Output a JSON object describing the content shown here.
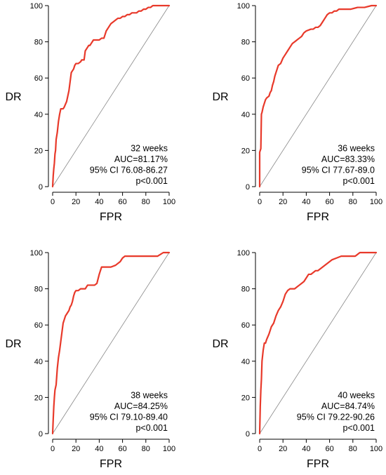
{
  "chart_data": [
    {
      "type": "line",
      "xlabel": "FPR",
      "ylabel": "DR",
      "xlim": [
        0,
        100
      ],
      "ylim": [
        0,
        100
      ],
      "xticks": [
        "0",
        "20",
        "40",
        "60",
        "80",
        "100"
      ],
      "yticks": [
        "0",
        "20",
        "40",
        "60",
        "80",
        "100"
      ],
      "grid": false,
      "annotation": [
        "32 weeks",
        "AUC=81.17%",
        "95% CI 76.08-86.27",
        "p<0.001"
      ],
      "series": [
        {
          "color": "#e8392a",
          "x": [
            0,
            0.5,
            1,
            1.5,
            2,
            2.5,
            3,
            4,
            5,
            6,
            7,
            9,
            10,
            12,
            14,
            15,
            16,
            18,
            19,
            20,
            22,
            24,
            25,
            27,
            28,
            30,
            31,
            32,
            33,
            34,
            35,
            36,
            38,
            40,
            42,
            44,
            45,
            46,
            48,
            50,
            52,
            54,
            56,
            58,
            60,
            62,
            64,
            66,
            68,
            70,
            72,
            74,
            76,
            78,
            80,
            82,
            84,
            86,
            88,
            90,
            100
          ],
          "y": [
            0,
            6,
            10,
            13,
            18,
            20,
            26,
            30,
            36,
            40,
            43,
            43,
            44,
            47,
            53,
            58,
            63,
            65,
            67,
            68,
            68,
            69,
            70,
            70,
            75,
            77,
            78,
            78,
            79,
            80,
            81,
            81,
            81,
            81,
            82,
            82,
            84,
            86,
            88,
            90,
            91,
            92,
            93,
            93,
            94,
            94,
            95,
            95,
            96,
            96,
            96,
            97,
            97,
            98,
            98,
            99,
            99,
            100,
            100,
            100,
            100
          ]
        },
        {
          "color": "#888888",
          "x": [
            0,
            100
          ],
          "y": [
            0,
            100
          ]
        }
      ]
    },
    {
      "type": "line",
      "xlabel": "FPR",
      "ylabel": "DR",
      "xlim": [
        0,
        100
      ],
      "ylim": [
        0,
        100
      ],
      "xticks": [
        "0",
        "20",
        "40",
        "60",
        "80",
        "100"
      ],
      "yticks": [
        "0",
        "20",
        "40",
        "60",
        "80",
        "100"
      ],
      "grid": false,
      "annotation": [
        "36 weeks",
        "AUC=83.33%",
        "95% CI 77.67-89.0",
        "p<0.001"
      ],
      "series": [
        {
          "color": "#e8392a",
          "x": [
            0,
            0,
            1,
            1.5,
            2,
            3,
            4,
            5,
            6,
            8,
            9,
            10,
            11,
            12,
            13,
            14,
            15,
            16,
            18,
            20,
            22,
            24,
            26,
            28,
            30,
            32,
            34,
            36,
            38,
            40,
            44,
            46,
            48,
            50,
            52,
            54,
            56,
            58,
            60,
            62,
            64,
            66,
            68,
            70,
            74,
            78,
            84,
            90,
            96,
            100
          ],
          "y": [
            0,
            19,
            21,
            40,
            41,
            44,
            46,
            48,
            49,
            50,
            52,
            53,
            56,
            58,
            61,
            63,
            65,
            67,
            68,
            71,
            73,
            75,
            77,
            79,
            80,
            81,
            82,
            83,
            85,
            86,
            87,
            87,
            88,
            88,
            89,
            91,
            93,
            95,
            96,
            96,
            97,
            97,
            98,
            98,
            98,
            98,
            99,
            99,
            100,
            100
          ]
        },
        {
          "color": "#888888",
          "x": [
            0,
            100
          ],
          "y": [
            0,
            100
          ]
        }
      ]
    },
    {
      "type": "line",
      "xlabel": "FPR",
      "ylabel": "DR",
      "xlim": [
        0,
        100
      ],
      "ylim": [
        0,
        100
      ],
      "xticks": [
        "0",
        "20",
        "40",
        "60",
        "80",
        "100"
      ],
      "yticks": [
        "0",
        "20",
        "40",
        "60",
        "80",
        "100"
      ],
      "grid": false,
      "annotation": [
        "38 weeks",
        "AUC=84.25%",
        "95% CI 79.10-89.40",
        "p<0.001"
      ],
      "series": [
        {
          "color": "#e8392a",
          "x": [
            0,
            0.5,
            1,
            1.5,
            2,
            3,
            4,
            5,
            6,
            7,
            8,
            9,
            10,
            11,
            12,
            13,
            14,
            15,
            16,
            17,
            18,
            19,
            20,
            22,
            24,
            26,
            28,
            30,
            32,
            34,
            36,
            38,
            40,
            42,
            44,
            46,
            50,
            54,
            58,
            60,
            62,
            64,
            66,
            70,
            80,
            90,
            95,
            100
          ],
          "y": [
            0,
            8,
            15,
            20,
            24,
            27,
            36,
            42,
            46,
            51,
            56,
            61,
            63,
            65,
            66,
            67,
            68,
            70,
            71,
            73,
            76,
            78,
            79,
            79,
            80,
            80,
            80,
            82,
            82,
            82,
            82,
            83,
            88,
            92,
            92,
            92,
            92,
            93,
            95,
            97,
            98,
            98,
            98,
            98,
            98,
            98,
            100,
            100
          ]
        },
        {
          "color": "#888888",
          "x": [
            0,
            100
          ],
          "y": [
            0,
            100
          ]
        }
      ]
    },
    {
      "type": "line",
      "xlabel": "FPR",
      "ylabel": "DR",
      "xlim": [
        0,
        100
      ],
      "ylim": [
        0,
        100
      ],
      "xticks": [
        "0",
        "20",
        "40",
        "60",
        "80",
        "100"
      ],
      "yticks": [
        "0",
        "20",
        "40",
        "60",
        "80",
        "100"
      ],
      "grid": false,
      "annotation": [
        "40 weeks",
        "AUC=84.74%",
        "95% CI 79.22-90.26",
        "p<0.001"
      ],
      "series": [
        {
          "color": "#e8392a",
          "x": [
            0,
            0.5,
            1,
            1.5,
            2,
            3,
            4,
            5,
            6,
            8,
            10,
            12,
            14,
            16,
            18,
            20,
            22,
            24,
            26,
            28,
            30,
            32,
            34,
            36,
            38,
            40,
            42,
            44,
            46,
            48,
            50,
            54,
            58,
            62,
            66,
            70,
            74,
            78,
            82,
            86,
            90,
            95,
            100
          ],
          "y": [
            0,
            15,
            24,
            30,
            40,
            46,
            50,
            50,
            52,
            55,
            59,
            61,
            65,
            68,
            70,
            73,
            77,
            79,
            80,
            80,
            80,
            81,
            82,
            83,
            84,
            86,
            88,
            88,
            89,
            90,
            90,
            92,
            94,
            96,
            97,
            98,
            98,
            98,
            98,
            100,
            100,
            100,
            100
          ]
        },
        {
          "color": "#888888",
          "x": [
            0,
            100
          ],
          "y": [
            0,
            100
          ]
        }
      ]
    }
  ]
}
